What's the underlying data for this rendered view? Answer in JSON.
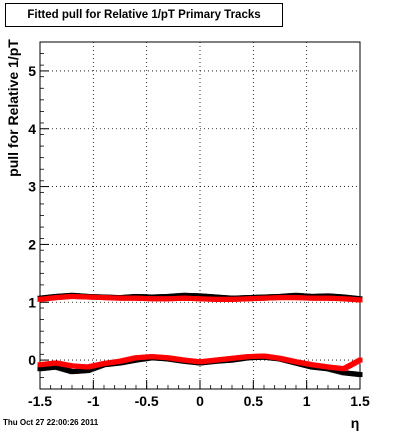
{
  "chart_data": {
    "type": "scatter",
    "title": "Fitted pull for Relative 1/pT  Primary Tracks",
    "xlabel": "η",
    "ylabel": "pull for Relative 1/pT",
    "xlim": [
      -1.5,
      1.5
    ],
    "ylim": [
      -0.5,
      5.5
    ],
    "x_ticks": [
      -1.5,
      -1,
      -0.5,
      0,
      0.5,
      1,
      1.5
    ],
    "x_tick_labels": [
      "-1.5",
      "-1",
      "-0.5",
      "0",
      "0.5",
      "1",
      "1.5"
    ],
    "y_ticks": [
      0,
      1,
      2,
      3,
      4,
      5
    ],
    "y_tick_labels": [
      "0",
      "1",
      "2",
      "3",
      "4",
      "5"
    ],
    "grid": true,
    "colors": {
      "black_series": "#000000",
      "red_series": "#ff0000"
    },
    "series": [
      {
        "color": "black",
        "x": [
          -1.5,
          -1.35,
          -1.2,
          -1.05,
          -0.9,
          -0.75,
          -0.6,
          -0.45,
          -0.3,
          -0.15,
          0.0,
          0.15,
          0.3,
          0.45,
          0.6,
          0.75,
          0.9,
          1.05,
          1.2,
          1.35,
          1.5
        ],
        "y": [
          1.07,
          1.1,
          1.12,
          1.1,
          1.09,
          1.08,
          1.1,
          1.09,
          1.1,
          1.12,
          1.11,
          1.09,
          1.07,
          1.08,
          1.09,
          1.1,
          1.12,
          1.1,
          1.11,
          1.09,
          1.06
        ]
      },
      {
        "color": "black",
        "x": [
          -1.5,
          -1.35,
          -1.2,
          -1.05,
          -0.9,
          -0.75,
          -0.6,
          -0.45,
          -0.3,
          -0.15,
          0.0,
          0.15,
          0.3,
          0.45,
          0.6,
          0.75,
          0.9,
          1.05,
          1.2,
          1.35,
          1.5
        ],
        "y": [
          -0.15,
          -0.12,
          -0.2,
          -0.18,
          -0.08,
          -0.05,
          0.0,
          0.04,
          0.02,
          -0.02,
          -0.05,
          -0.02,
          0.0,
          0.04,
          0.05,
          0.02,
          -0.05,
          -0.12,
          -0.15,
          -0.22,
          -0.25
        ]
      },
      {
        "color": "red",
        "x": [
          -1.5,
          -1.35,
          -1.2,
          -1.05,
          -0.9,
          -0.75,
          -0.6,
          -0.45,
          -0.3,
          -0.15,
          0.0,
          0.15,
          0.3,
          0.45,
          0.6,
          0.75,
          0.9,
          1.05,
          1.2,
          1.35,
          1.5
        ],
        "y": [
          1.05,
          1.08,
          1.1,
          1.09,
          1.08,
          1.07,
          1.07,
          1.06,
          1.06,
          1.07,
          1.06,
          1.05,
          1.05,
          1.06,
          1.07,
          1.08,
          1.08,
          1.07,
          1.07,
          1.06,
          1.04
        ]
      },
      {
        "color": "red",
        "x": [
          -1.5,
          -1.35,
          -1.2,
          -1.05,
          -0.9,
          -0.75,
          -0.6,
          -0.45,
          -0.3,
          -0.15,
          0.0,
          0.15,
          0.3,
          0.45,
          0.6,
          0.75,
          0.9,
          1.05,
          1.2,
          1.35,
          1.5
        ],
        "y": [
          -0.08,
          -0.05,
          -0.1,
          -0.12,
          -0.06,
          -0.02,
          0.04,
          0.06,
          0.04,
          0.0,
          -0.03,
          0.0,
          0.03,
          0.06,
          0.07,
          0.03,
          -0.03,
          -0.08,
          -0.12,
          -0.15,
          0.0
        ]
      }
    ]
  },
  "footer": {
    "timestamp": "Thu Oct 27 22:00:26 2011"
  }
}
